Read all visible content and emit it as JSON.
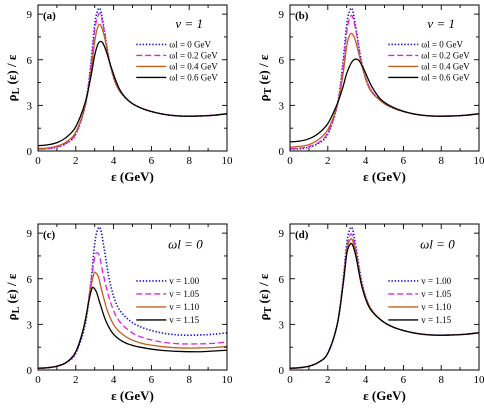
{
  "chart_data": [
    {
      "type": "line",
      "panel": "(a)",
      "annotation": "v = 1",
      "xlabel": "ε (GeV)",
      "ylabel": "ρL (ε) / ε",
      "xlim": [
        0,
        10
      ],
      "ylim": [
        0,
        9.6
      ],
      "xticks": [
        0,
        2,
        4,
        6,
        8,
        10
      ],
      "yticks": [
        0,
        3,
        6,
        9
      ],
      "legend_position": "top-right",
      "series": [
        {
          "name": "ωl = 0 GeV",
          "color": "#1515d0",
          "dash": "dot",
          "x": [
            0,
            0.5,
            1,
            1.5,
            2,
            2.5,
            2.8,
            3.0,
            3.15,
            3.3,
            3.5,
            3.8,
            4.2,
            4.8,
            5.5,
            6.5,
            7.5,
            8.5,
            9.3,
            10
          ],
          "y": [
            0.12,
            0.15,
            0.25,
            0.5,
            1.1,
            3.0,
            5.8,
            8.3,
            9.2,
            9.3,
            8.0,
            5.8,
            4.2,
            3.3,
            2.8,
            2.45,
            2.3,
            2.3,
            2.35,
            2.45
          ]
        },
        {
          "name": "ωl = 0.2 GeV",
          "color": "#e020e0",
          "dash": "dash",
          "x": [
            0,
            0.5,
            1,
            1.5,
            2,
            2.5,
            2.8,
            3.0,
            3.15,
            3.3,
            3.5,
            3.8,
            4.2,
            4.8,
            5.5,
            6.5,
            7.5,
            8.5,
            9.3,
            10
          ],
          "y": [
            0.13,
            0.16,
            0.27,
            0.52,
            1.15,
            3.0,
            5.6,
            7.9,
            8.8,
            9.0,
            7.9,
            5.8,
            4.2,
            3.3,
            2.8,
            2.45,
            2.3,
            2.3,
            2.35,
            2.45
          ]
        },
        {
          "name": "ωl = 0.4 GeV",
          "color": "#c06020",
          "dash": "solid",
          "x": [
            0,
            0.5,
            1,
            1.5,
            2,
            2.5,
            2.8,
            3.0,
            3.15,
            3.3,
            3.5,
            3.8,
            4.2,
            4.8,
            5.5,
            6.5,
            7.5,
            8.5,
            9.3,
            10
          ],
          "y": [
            0.17,
            0.2,
            0.32,
            0.6,
            1.25,
            3.0,
            5.2,
            7.2,
            8.1,
            8.3,
            7.6,
            5.8,
            4.2,
            3.3,
            2.8,
            2.45,
            2.3,
            2.3,
            2.35,
            2.45
          ]
        },
        {
          "name": "ωl = 0.6 GeV",
          "color": "#000000",
          "dash": "solid",
          "x": [
            0,
            0.5,
            1,
            1.5,
            2,
            2.5,
            2.8,
            3.0,
            3.2,
            3.4,
            3.6,
            3.9,
            4.3,
            4.8,
            5.5,
            6.5,
            7.5,
            8.5,
            9.3,
            10
          ],
          "y": [
            0.35,
            0.4,
            0.55,
            0.9,
            1.6,
            3.2,
            4.9,
            6.3,
            7.1,
            7.15,
            6.6,
            5.4,
            4.1,
            3.3,
            2.8,
            2.45,
            2.3,
            2.3,
            2.35,
            2.45
          ]
        }
      ]
    },
    {
      "type": "line",
      "panel": "(b)",
      "annotation": "v = 1",
      "xlabel": "ε (GeV)",
      "ylabel": "ρT (ε) / ε",
      "xlim": [
        0,
        10
      ],
      "ylim": [
        0,
        9.6
      ],
      "xticks": [
        0,
        2,
        4,
        6,
        8,
        10
      ],
      "yticks": [
        0,
        3,
        6,
        9
      ],
      "legend_position": "top-right",
      "series": [
        {
          "name": "ωl = 0 GeV",
          "color": "#1515d0",
          "dash": "dot",
          "x": [
            0,
            0.5,
            1,
            1.5,
            2,
            2.5,
            2.8,
            3.0,
            3.15,
            3.3,
            3.5,
            3.8,
            4.2,
            4.8,
            5.5,
            6.5,
            7.5,
            8.5,
            9.3,
            10
          ],
          "y": [
            0.12,
            0.15,
            0.25,
            0.5,
            1.1,
            3.0,
            5.8,
            8.3,
            9.2,
            9.3,
            8.0,
            5.8,
            4.2,
            3.3,
            2.8,
            2.45,
            2.3,
            2.3,
            2.35,
            2.45
          ]
        },
        {
          "name": "ωl = 0.2 GeV",
          "color": "#e020e0",
          "dash": "dash",
          "x": [
            0,
            0.5,
            1,
            1.5,
            2,
            2.5,
            2.8,
            3.0,
            3.15,
            3.3,
            3.5,
            3.8,
            4.2,
            4.8,
            5.5,
            6.5,
            7.5,
            8.5,
            9.3,
            10
          ],
          "y": [
            0.15,
            0.18,
            0.3,
            0.55,
            1.2,
            3.0,
            5.5,
            7.8,
            8.7,
            8.85,
            7.8,
            5.7,
            4.2,
            3.3,
            2.8,
            2.45,
            2.3,
            2.3,
            2.35,
            2.45
          ]
        },
        {
          "name": "ωl = 0.4 GeV",
          "color": "#c06020",
          "dash": "solid",
          "x": [
            0,
            0.5,
            1,
            1.5,
            2,
            2.5,
            2.8,
            3.0,
            3.15,
            3.3,
            3.5,
            3.8,
            4.2,
            4.8,
            5.5,
            6.5,
            7.5,
            8.5,
            9.3,
            10
          ],
          "y": [
            0.25,
            0.3,
            0.42,
            0.75,
            1.4,
            3.0,
            5.0,
            6.9,
            7.6,
            7.7,
            7.1,
            5.6,
            4.1,
            3.3,
            2.8,
            2.45,
            2.3,
            2.3,
            2.35,
            2.45
          ]
        },
        {
          "name": "ωl = 0.6 GeV",
          "color": "#000000",
          "dash": "solid",
          "x": [
            0,
            0.5,
            1,
            1.5,
            2,
            2.5,
            2.8,
            3.0,
            3.3,
            3.6,
            3.9,
            4.3,
            4.8,
            5.5,
            6.5,
            7.5,
            8.5,
            9.3,
            10
          ],
          "y": [
            0.6,
            0.65,
            0.8,
            1.15,
            1.8,
            3.1,
            4.2,
            5.1,
            5.9,
            6.0,
            5.4,
            4.3,
            3.4,
            2.85,
            2.45,
            2.3,
            2.3,
            2.35,
            2.45
          ]
        }
      ]
    },
    {
      "type": "line",
      "panel": "(c)",
      "annotation": "ωl = 0",
      "xlabel": "ε (GeV)",
      "ylabel": "ρL (ε) / ε",
      "xlim": [
        0,
        10
      ],
      "ylim": [
        0,
        9.6
      ],
      "xticks": [
        0,
        2,
        4,
        6,
        8,
        10
      ],
      "yticks": [
        0,
        3,
        6,
        9
      ],
      "legend_position": "right",
      "series": [
        {
          "name": "v = 1.00",
          "color": "#1515d0",
          "dash": "dot",
          "x": [
            0,
            0.5,
            1,
            1.5,
            2,
            2.5,
            2.8,
            3.0,
            3.15,
            3.3,
            3.5,
            3.8,
            4.2,
            4.8,
            5.5,
            6.5,
            7.5,
            8.5,
            9.3,
            10
          ],
          "y": [
            0.12,
            0.15,
            0.25,
            0.5,
            1.1,
            3.0,
            5.8,
            8.3,
            9.2,
            9.3,
            8.0,
            5.8,
            4.2,
            3.3,
            2.8,
            2.45,
            2.3,
            2.3,
            2.35,
            2.45
          ]
        },
        {
          "name": "v = 1.05",
          "color": "#e020e0",
          "dash": "dash",
          "x": [
            0,
            0.5,
            1,
            1.5,
            2,
            2.5,
            2.8,
            3.0,
            3.1,
            3.25,
            3.45,
            3.8,
            4.2,
            4.8,
            5.5,
            6.5,
            7.5,
            8.5,
            9.3,
            10
          ],
          "y": [
            0.12,
            0.15,
            0.25,
            0.5,
            1.15,
            3.2,
            5.8,
            7.4,
            7.7,
            7.5,
            6.3,
            4.6,
            3.4,
            2.6,
            2.15,
            1.85,
            1.72,
            1.72,
            1.75,
            1.85
          ]
        },
        {
          "name": "v = 1.10",
          "color": "#c06020",
          "dash": "solid",
          "x": [
            0,
            0.5,
            1,
            1.5,
            2,
            2.5,
            2.75,
            2.95,
            3.05,
            3.2,
            3.4,
            3.7,
            4.1,
            4.7,
            5.5,
            6.5,
            7.5,
            8.5,
            9.3,
            10
          ],
          "y": [
            0.12,
            0.15,
            0.25,
            0.5,
            1.2,
            3.2,
            5.1,
            6.3,
            6.4,
            6.1,
            5.1,
            3.8,
            2.8,
            2.15,
            1.75,
            1.55,
            1.45,
            1.45,
            1.48,
            1.55
          ]
        },
        {
          "name": "v = 1.15",
          "color": "#000000",
          "dash": "solid",
          "x": [
            0,
            0.5,
            1,
            1.5,
            2,
            2.4,
            2.7,
            2.85,
            2.95,
            3.1,
            3.3,
            3.6,
            4.0,
            4.6,
            5.4,
            6.5,
            7.5,
            8.5,
            9.3,
            10
          ],
          "y": [
            0.12,
            0.15,
            0.25,
            0.5,
            1.2,
            2.7,
            4.6,
            5.35,
            5.4,
            5.1,
            4.3,
            3.2,
            2.35,
            1.8,
            1.5,
            1.3,
            1.22,
            1.2,
            1.25,
            1.3
          ]
        }
      ]
    },
    {
      "type": "line",
      "panel": "(d)",
      "annotation": "ωl = 0",
      "xlabel": "ε (GeV)",
      "ylabel": "ρT (ε) / ε",
      "xlim": [
        0,
        10
      ],
      "ylim": [
        0,
        9.6
      ],
      "xticks": [
        0,
        2,
        4,
        6,
        8,
        10
      ],
      "yticks": [
        0,
        3,
        6,
        9
      ],
      "legend_position": "right",
      "series": [
        {
          "name": "v = 1.00",
          "color": "#1515d0",
          "dash": "dot",
          "x": [
            0,
            0.5,
            1,
            1.5,
            2,
            2.5,
            2.8,
            3.0,
            3.15,
            3.3,
            3.5,
            3.8,
            4.2,
            4.8,
            5.5,
            6.5,
            7.5,
            8.5,
            9.3,
            10
          ],
          "y": [
            0.12,
            0.15,
            0.25,
            0.5,
            1.1,
            3.0,
            5.8,
            8.3,
            9.2,
            9.3,
            8.0,
            5.8,
            4.2,
            3.3,
            2.8,
            2.45,
            2.3,
            2.3,
            2.35,
            2.45
          ]
        },
        {
          "name": "v = 1.05",
          "color": "#e020e0",
          "dash": "dash",
          "x": [
            0,
            0.5,
            1,
            1.5,
            2,
            2.5,
            2.8,
            3.0,
            3.15,
            3.3,
            3.5,
            3.8,
            4.2,
            4.8,
            5.5,
            6.5,
            7.5,
            8.5,
            9.3,
            10
          ],
          "y": [
            0.12,
            0.15,
            0.25,
            0.5,
            1.1,
            3.0,
            5.7,
            8.0,
            8.8,
            8.85,
            7.8,
            5.7,
            4.2,
            3.3,
            2.8,
            2.45,
            2.3,
            2.3,
            2.35,
            2.45
          ]
        },
        {
          "name": "v = 1.10",
          "color": "#c06020",
          "dash": "solid",
          "x": [
            0,
            0.5,
            1,
            1.5,
            2,
            2.5,
            2.8,
            3.0,
            3.15,
            3.3,
            3.5,
            3.8,
            4.2,
            4.8,
            5.5,
            6.5,
            7.5,
            8.5,
            9.3,
            10
          ],
          "y": [
            0.12,
            0.15,
            0.25,
            0.5,
            1.1,
            3.0,
            5.6,
            7.8,
            8.5,
            8.55,
            7.6,
            5.6,
            4.2,
            3.3,
            2.8,
            2.45,
            2.3,
            2.3,
            2.35,
            2.45
          ]
        },
        {
          "name": "v = 1.15",
          "color": "#000000",
          "dash": "solid",
          "x": [
            0,
            0.5,
            1,
            1.5,
            2,
            2.5,
            2.8,
            3.0,
            3.15,
            3.3,
            3.5,
            3.8,
            4.2,
            4.8,
            5.5,
            6.5,
            7.5,
            8.5,
            9.3,
            10
          ],
          "y": [
            0.12,
            0.15,
            0.25,
            0.5,
            1.1,
            3.0,
            5.5,
            7.6,
            8.2,
            8.25,
            7.4,
            5.5,
            4.1,
            3.3,
            2.8,
            2.45,
            2.3,
            2.3,
            2.35,
            2.45
          ]
        }
      ]
    }
  ]
}
